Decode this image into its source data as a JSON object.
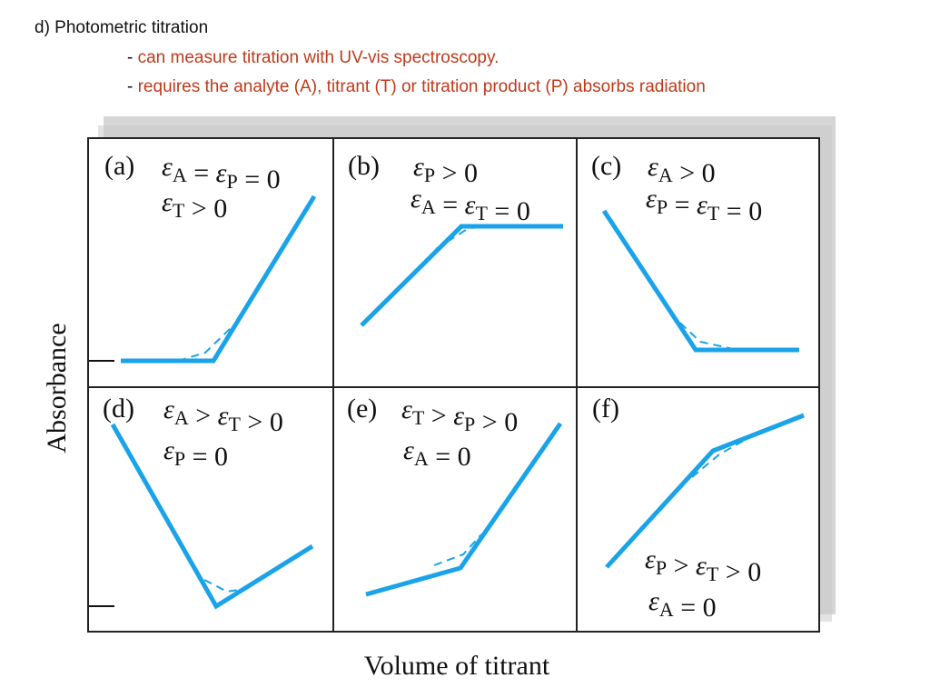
{
  "slide": {
    "heading": "d) Photometric titration",
    "bullets": [
      {
        "dash": "- ",
        "text": "can measure titration with UV-vis spectroscopy."
      },
      {
        "dash": "- ",
        "text": "requires the analyte (A), titrant (T) or titration product (P) absorbs radiation"
      }
    ]
  },
  "figure": {
    "y_axis_label": "Absorbance",
    "x_axis_label": "Volume of titrant",
    "line_color": "#1aa3e8",
    "panels": [
      {
        "id": "a",
        "label": "(a)",
        "conditions": [
          [
            {
              "t": "ε",
              "s": "A"
            },
            {
              "t": " = "
            },
            {
              "t": "ε",
              "s": "P"
            },
            {
              "t": " = 0"
            }
          ],
          [
            {
              "t": "ε",
              "s": "T"
            },
            {
              "t": " > 0"
            }
          ]
        ]
      },
      {
        "id": "b",
        "label": "(b)",
        "conditions": [
          [
            {
              "t": "ε",
              "s": "P"
            },
            {
              "t": " > 0"
            }
          ],
          [
            {
              "t": "ε",
              "s": "A"
            },
            {
              "t": " = "
            },
            {
              "t": "ε",
              "s": "T"
            },
            {
              "t": " = 0"
            }
          ]
        ]
      },
      {
        "id": "c",
        "label": "(c)",
        "conditions": [
          [
            {
              "t": "ε",
              "s": "A"
            },
            {
              "t": " > 0"
            }
          ],
          [
            {
              "t": "ε",
              "s": "P"
            },
            {
              "t": " = "
            },
            {
              "t": "ε",
              "s": "T"
            },
            {
              "t": " = 0"
            }
          ]
        ]
      },
      {
        "id": "d",
        "label": "(d)",
        "conditions": [
          [
            {
              "t": "ε",
              "s": "A"
            },
            {
              "t": " > "
            },
            {
              "t": "ε",
              "s": "T"
            },
            {
              "t": " > 0"
            }
          ],
          [
            {
              "t": "ε",
              "s": "P"
            },
            {
              "t": " = 0"
            }
          ]
        ]
      },
      {
        "id": "e",
        "label": "(e)",
        "conditions": [
          [
            {
              "t": "ε",
              "s": "T"
            },
            {
              "t": " > "
            },
            {
              "t": "ε",
              "s": "P"
            },
            {
              "t": " > 0"
            }
          ],
          [
            {
              "t": "ε",
              "s": "A"
            },
            {
              "t": " = 0"
            }
          ]
        ]
      },
      {
        "id": "f",
        "label": "(f)",
        "conditions": [
          [
            {
              "t": "ε",
              "s": "P"
            },
            {
              "t": " > "
            },
            {
              "t": "ε",
              "s": "T"
            },
            {
              "t": " > 0"
            }
          ],
          [
            {
              "t": "ε",
              "s": "A"
            },
            {
              "t": " = 0"
            }
          ]
        ]
      }
    ]
  }
}
